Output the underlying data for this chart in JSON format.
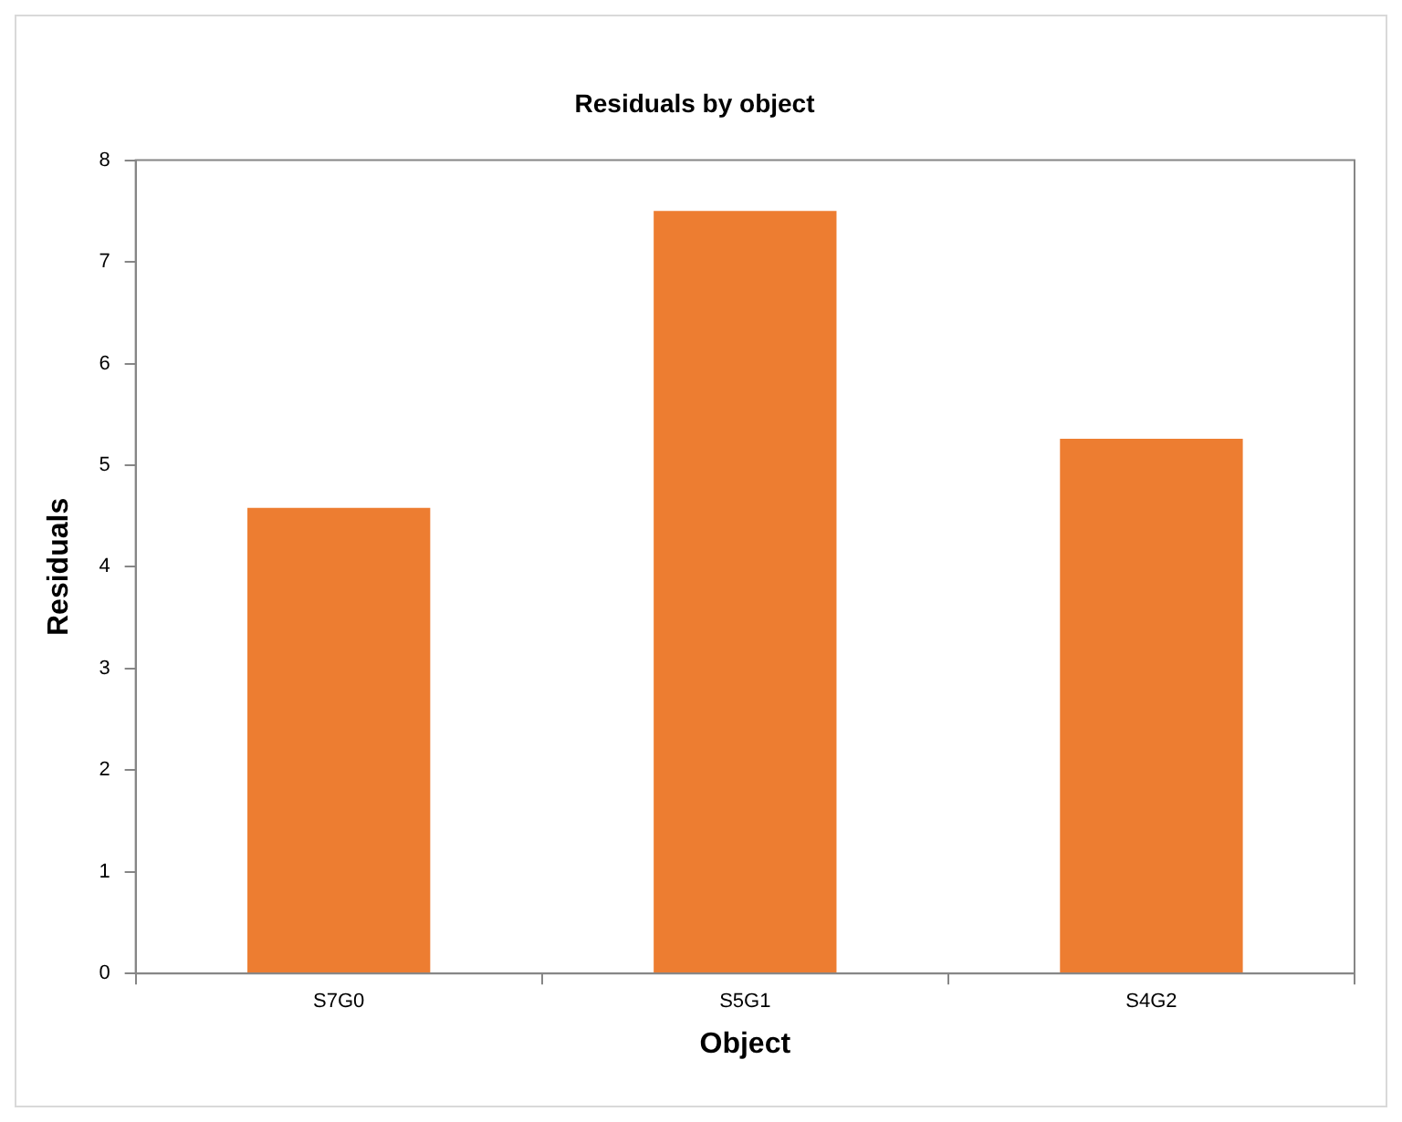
{
  "chart_data": {
    "type": "bar",
    "title": "Residuals by object",
    "xlabel": "Object",
    "ylabel": "Residuals",
    "categories": [
      "S7G0",
      "S5G1",
      "S4G2"
    ],
    "values": [
      4.58,
      7.5,
      5.26
    ],
    "color": "#ed7d31",
    "ylim": [
      0,
      8
    ],
    "yticks": [
      0,
      1,
      2,
      3,
      4,
      5,
      6,
      7,
      8
    ],
    "grid": false,
    "legend": false
  }
}
